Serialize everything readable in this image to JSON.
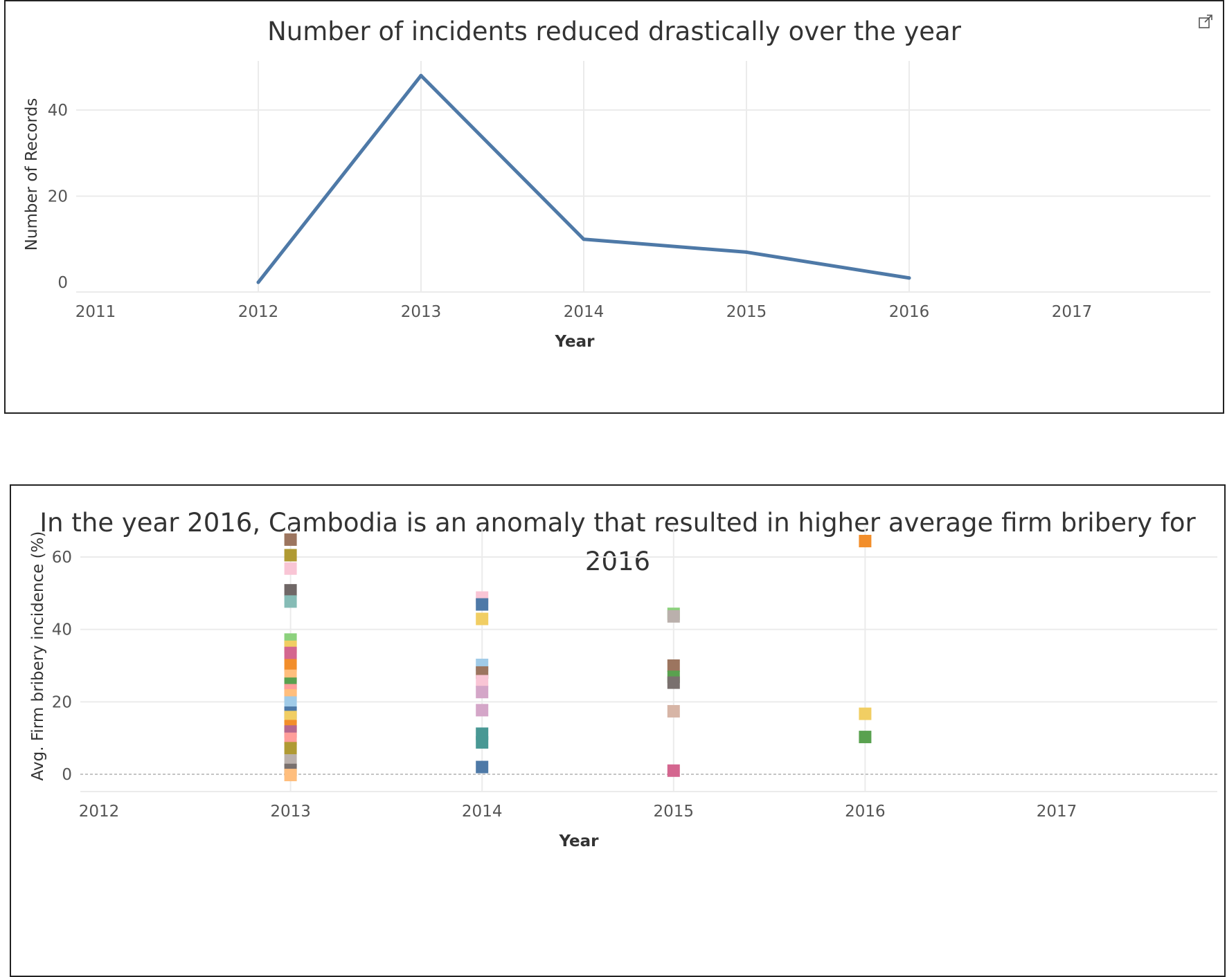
{
  "colors": {
    "line": "#4e79a7",
    "grid": "#ebebeb",
    "zero_line": "#b0b0b0",
    "border": "#222222"
  },
  "chart1": {
    "icon": "popout-icon"
  },
  "chart_data": [
    {
      "type": "line",
      "title": "Number of incidents reduced drastically over the year",
      "xlabel": "Year",
      "ylabel": "Number of Records",
      "x": [
        2012,
        2013,
        2014,
        2015,
        2016
      ],
      "y": [
        0,
        48,
        10,
        7,
        1
      ],
      "xlim": [
        2011,
        2017
      ],
      "ylim": [
        0,
        50
      ],
      "xticks": [
        "2011",
        "2012",
        "2013",
        "2014",
        "2015",
        "2016",
        "2017"
      ],
      "yticks": [
        "0",
        "20",
        "40"
      ],
      "grid": true
    },
    {
      "type": "scatter",
      "title": "In the year 2016, Cambodia is an anomaly that resulted in higher average firm bribery for 2016",
      "xlabel": "Year",
      "ylabel": "Avg. Firm bribery incidence (%)",
      "xlim": [
        2012,
        2017
      ],
      "ylim": [
        -2,
        70
      ],
      "xticks": [
        "2012",
        "2013",
        "2014",
        "2015",
        "2016",
        "2017"
      ],
      "yticks": [
        "0",
        "20",
        "40",
        "60"
      ],
      "grid": true,
      "points": [
        {
          "x": 2013,
          "y": 64.8,
          "color": "#9c755f"
        },
        {
          "x": 2013,
          "y": 60.5,
          "color": "#b09a33"
        },
        {
          "x": 2013,
          "y": 56.8,
          "color": "#f9c5d5"
        },
        {
          "x": 2013,
          "y": 50.8,
          "color": "#6f6766"
        },
        {
          "x": 2013,
          "y": 47.7,
          "color": "#86bcb6"
        },
        {
          "x": 2013,
          "y": 37.2,
          "color": "#8cd17d"
        },
        {
          "x": 2013,
          "y": 35.2,
          "color": "#f1ce63"
        },
        {
          "x": 2013,
          "y": 33.5,
          "color": "#d4668f"
        },
        {
          "x": 2013,
          "y": 30.1,
          "color": "#f28e2b"
        },
        {
          "x": 2013,
          "y": 27.2,
          "color": "#ffbe7d"
        },
        {
          "x": 2013,
          "y": 25.0,
          "color": "#59a14f"
        },
        {
          "x": 2013,
          "y": 23.2,
          "color": "#ff9d9a"
        },
        {
          "x": 2013,
          "y": 21.8,
          "color": "#ffbe7d"
        },
        {
          "x": 2013,
          "y": 19.8,
          "color": "#a0cbe8"
        },
        {
          "x": 2013,
          "y": 17.0,
          "color": "#4e79a7"
        },
        {
          "x": 2013,
          "y": 15.8,
          "color": "#f1ce63"
        },
        {
          "x": 2013,
          "y": 13.3,
          "color": "#f28e2b"
        },
        {
          "x": 2013,
          "y": 11.8,
          "color": "#b6678e"
        },
        {
          "x": 2013,
          "y": 9.8,
          "color": "#ff9d9a"
        },
        {
          "x": 2013,
          "y": 7.2,
          "color": "#b09a33"
        },
        {
          "x": 2013,
          "y": 3.8,
          "color": "#bab0ac"
        },
        {
          "x": 2013,
          "y": 1.2,
          "color": "#79706e"
        },
        {
          "x": 2013,
          "y": -0.2,
          "color": "#ffbe7d"
        },
        {
          "x": 2014,
          "y": 48.8,
          "color": "#f9c5d5"
        },
        {
          "x": 2014,
          "y": 46.9,
          "color": "#4e79a7"
        },
        {
          "x": 2014,
          "y": 42.9,
          "color": "#f1ce63"
        },
        {
          "x": 2014,
          "y": 30.2,
          "color": "#a0cbe8"
        },
        {
          "x": 2014,
          "y": 28.1,
          "color": "#9c755f"
        },
        {
          "x": 2014,
          "y": 25.7,
          "color": "#f9c5d5"
        },
        {
          "x": 2014,
          "y": 22.7,
          "color": "#d4a6c8"
        },
        {
          "x": 2014,
          "y": 17.7,
          "color": "#d4a6c8"
        },
        {
          "x": 2014,
          "y": 11.2,
          "color": "#499894"
        },
        {
          "x": 2014,
          "y": 8.8,
          "color": "#499894"
        },
        {
          "x": 2014,
          "y": 2.0,
          "color": "#4e79a7"
        },
        {
          "x": 2015,
          "y": 44.3,
          "color": "#8cd17d"
        },
        {
          "x": 2015,
          "y": 43.6,
          "color": "#bab0ac"
        },
        {
          "x": 2015,
          "y": 30.0,
          "color": "#9c755f"
        },
        {
          "x": 2015,
          "y": 26.9,
          "color": "#59a14f"
        },
        {
          "x": 2015,
          "y": 25.3,
          "color": "#79706e"
        },
        {
          "x": 2015,
          "y": 17.4,
          "color": "#d7b5a6"
        },
        {
          "x": 2015,
          "y": 1.0,
          "color": "#d4668f"
        },
        {
          "x": 2016,
          "y": 64.4,
          "color": "#f28e2b"
        },
        {
          "x": 2016,
          "y": 16.7,
          "color": "#f1ce63"
        },
        {
          "x": 2016,
          "y": 10.3,
          "color": "#59a14f"
        }
      ]
    }
  ]
}
